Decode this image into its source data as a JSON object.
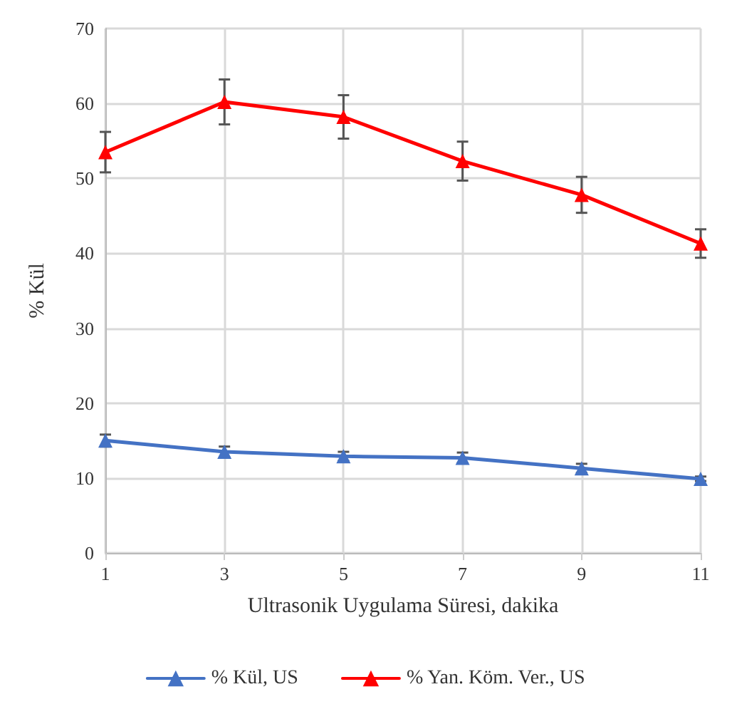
{
  "chart_data": {
    "type": "line",
    "xlabel": "Ultrasonik Uygulama Süresi, dakika",
    "ylabel": "% Kül",
    "x": [
      1,
      3,
      5,
      7,
      9,
      11
    ],
    "xlim": [
      1,
      11
    ],
    "xticks": [
      1,
      3,
      5,
      7,
      9,
      11
    ],
    "ylim": [
      0,
      70
    ],
    "yticks": [
      0,
      10,
      20,
      30,
      40,
      50,
      60,
      70
    ],
    "series": [
      {
        "name": "% Kül, US",
        "color": "#4472c4",
        "values": [
          15.0,
          13.5,
          12.9,
          12.7,
          11.3,
          9.9
        ],
        "errors": [
          0.8,
          0.7,
          0.6,
          0.7,
          0.6,
          0.3
        ]
      },
      {
        "name": "% Yan. Köm. Ver., US",
        "color": "#ff0000",
        "values": [
          53.5,
          60.2,
          58.2,
          52.3,
          47.8,
          41.3
        ],
        "errors": [
          2.7,
          3.0,
          2.9,
          2.6,
          2.4,
          1.9
        ]
      }
    ],
    "grid": true,
    "legend": "bottom",
    "marker": "triangle",
    "line_style": "solid"
  }
}
